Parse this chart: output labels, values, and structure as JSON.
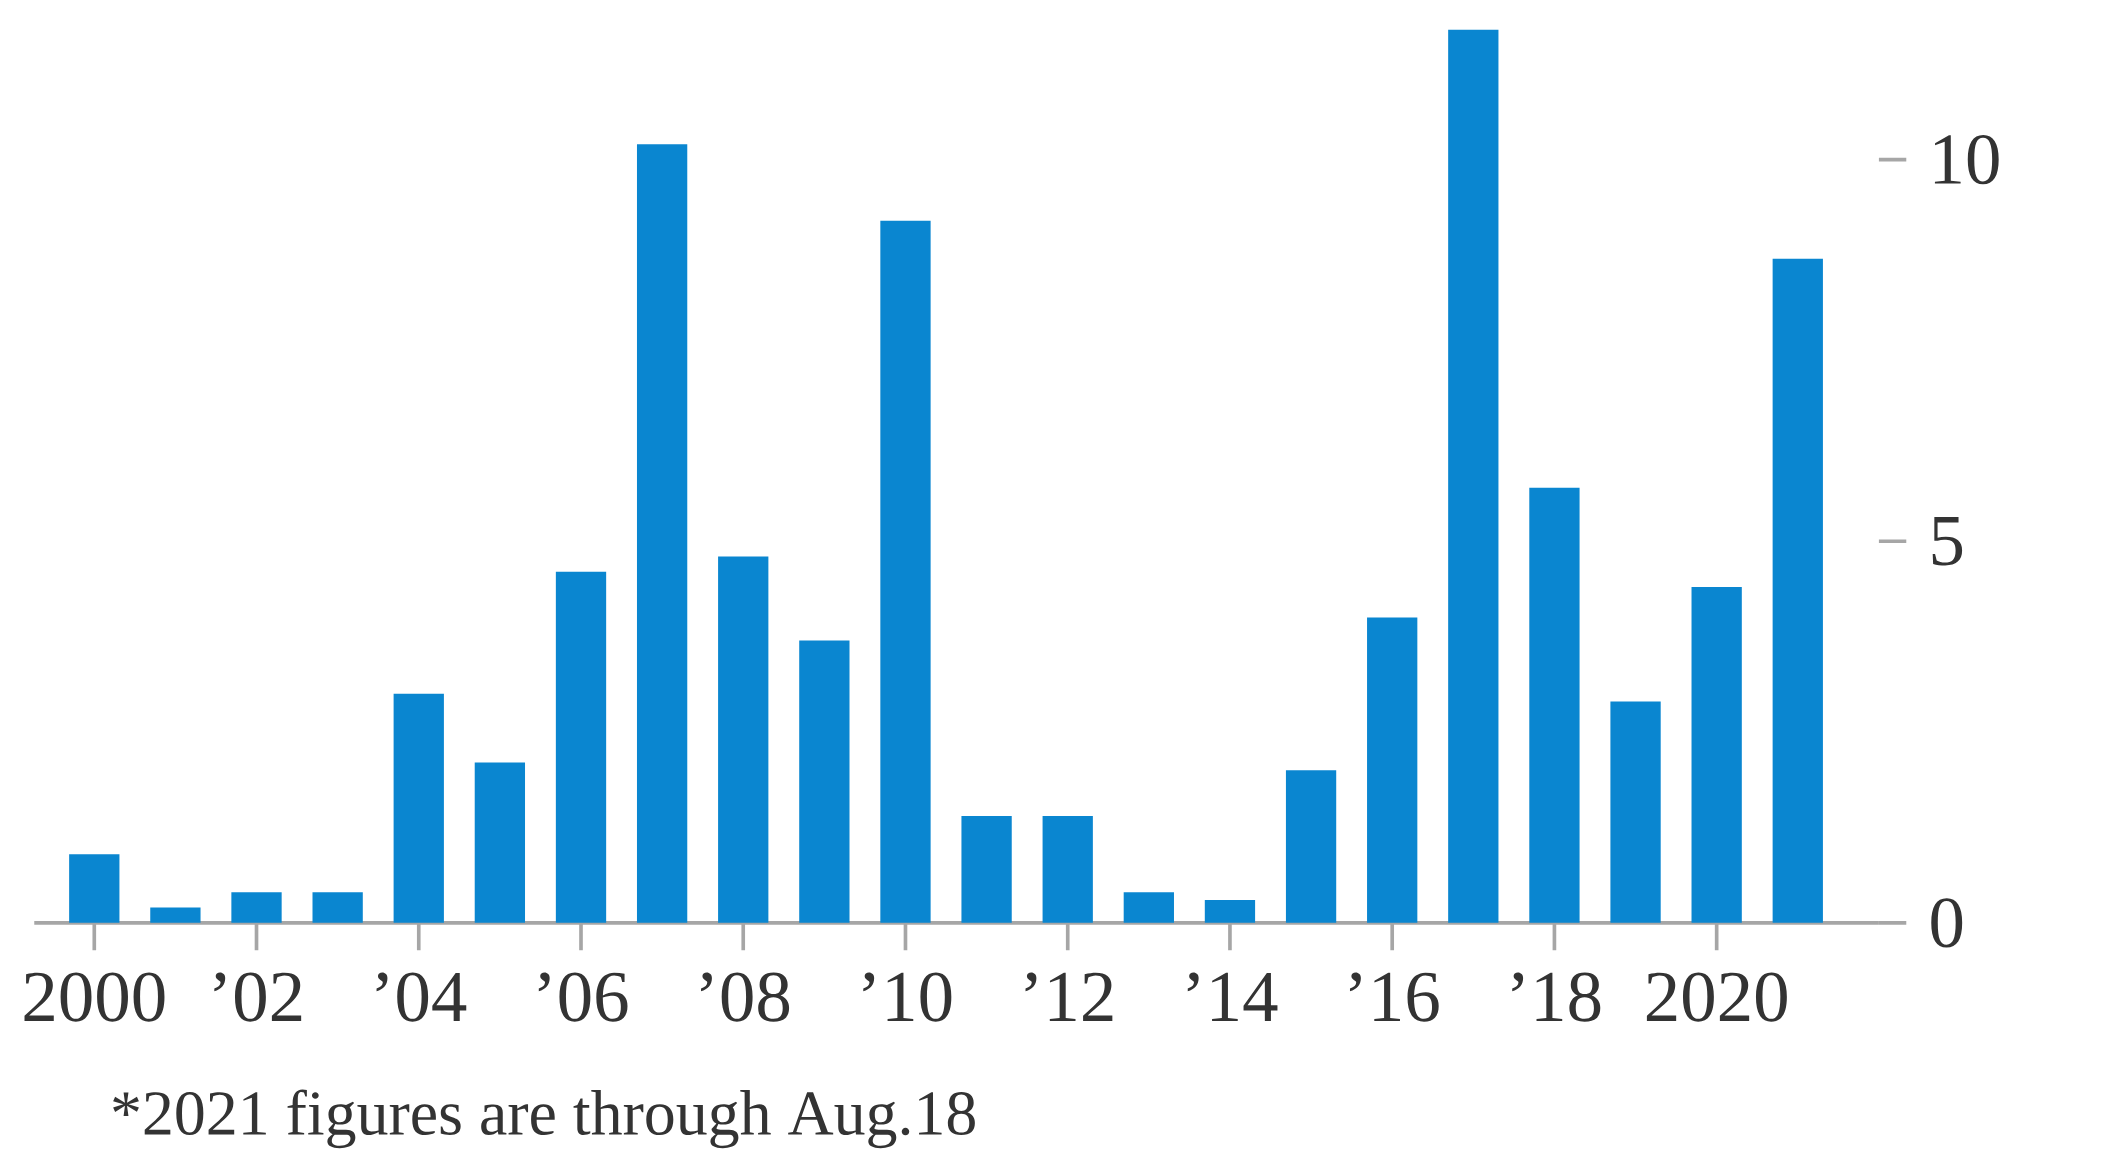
{
  "chart_data": {
    "type": "bar",
    "categories": [
      "2000",
      null,
      "’02",
      null,
      "’04",
      null,
      "’06",
      null,
      "’08",
      null,
      "’10",
      null,
      "’12",
      null,
      "’14",
      null,
      "’16",
      null,
      "’18",
      null,
      "2020",
      null
    ],
    "values": [
      0.9,
      0.2,
      0.4,
      0.4,
      3.0,
      2.1,
      4.6,
      10.2,
      4.8,
      3.7,
      9.2,
      1.4,
      1.4,
      0.4,
      0.3,
      2.0,
      4.0,
      11.7,
      5.7,
      2.9,
      4.4,
      8.7
    ],
    "color": "#0a86d0",
    "ylim": [
      0,
      11.7
    ],
    "yticks": [
      0,
      5,
      10
    ],
    "annotations": [
      "*2021 figures are through Aug.18"
    ]
  }
}
